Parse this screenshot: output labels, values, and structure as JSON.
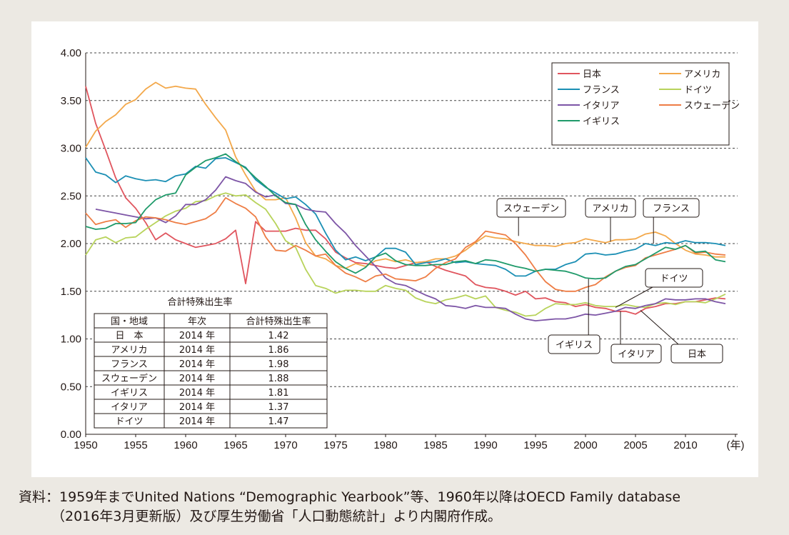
{
  "chart_data": {
    "type": "line",
    "title": "",
    "xlabel": "(年)",
    "ylabel": "",
    "xlim": [
      1950,
      2016
    ],
    "ylim": [
      0,
      4.0
    ],
    "x_ticks": [
      "1950",
      "1955",
      "1960",
      "1965",
      "1970",
      "1975",
      "1980",
      "1985",
      "1990",
      "1995",
      "2000",
      "2005",
      "2010",
      "(年)"
    ],
    "y_ticks": [
      "0.00",
      "0.50",
      "1.00",
      "1.50",
      "2.00",
      "2.50",
      "3.00",
      "3.50",
      "4.00"
    ],
    "legend": [
      "日本",
      "アメリカ",
      "フランス",
      "ドイツ",
      "イタリア",
      "スウェーデン",
      "イギリス"
    ],
    "series": [
      {
        "name": "日本",
        "color": "#e0555e",
        "x": [
          1950,
          1951,
          1952,
          1953,
          1954,
          1955,
          1956,
          1957,
          1958,
          1959,
          1960,
          1961,
          1962,
          1963,
          1964,
          1965,
          1966,
          1967,
          1968,
          1969,
          1970,
          1971,
          1972,
          1973,
          1974,
          1975,
          1976,
          1977,
          1978,
          1979,
          1980,
          1981,
          1982,
          1983,
          1984,
          1985,
          1986,
          1987,
          1988,
          1989,
          1990,
          1991,
          1992,
          1993,
          1994,
          1995,
          1996,
          1997,
          1998,
          1999,
          2000,
          2001,
          2002,
          2003,
          2004,
          2005,
          2006,
          2007,
          2008,
          2009,
          2010,
          2011,
          2012,
          2013,
          2014
        ],
        "values": [
          3.65,
          3.26,
          2.98,
          2.69,
          2.48,
          2.37,
          2.22,
          2.04,
          2.11,
          2.04,
          2.0,
          1.96,
          1.98,
          2.0,
          2.05,
          2.14,
          1.58,
          2.23,
          2.13,
          2.13,
          2.13,
          2.16,
          2.14,
          2.14,
          2.05,
          1.91,
          1.85,
          1.8,
          1.79,
          1.77,
          1.75,
          1.74,
          1.77,
          1.8,
          1.81,
          1.76,
          1.72,
          1.69,
          1.66,
          1.57,
          1.54,
          1.53,
          1.5,
          1.46,
          1.5,
          1.42,
          1.43,
          1.39,
          1.38,
          1.34,
          1.36,
          1.33,
          1.32,
          1.29,
          1.29,
          1.26,
          1.32,
          1.34,
          1.37,
          1.37,
          1.39,
          1.39,
          1.41,
          1.43,
          1.42
        ]
      },
      {
        "name": "アメリカ",
        "color": "#f3a84a",
        "x": [
          1950,
          1951,
          1952,
          1953,
          1954,
          1955,
          1956,
          1957,
          1958,
          1959,
          1960,
          1961,
          1962,
          1963,
          1964,
          1965,
          1966,
          1967,
          1968,
          1969,
          1970,
          1971,
          1972,
          1973,
          1974,
          1975,
          1976,
          1977,
          1978,
          1979,
          1980,
          1981,
          1982,
          1983,
          1984,
          1985,
          1986,
          1987,
          1988,
          1989,
          1990,
          1991,
          1992,
          1993,
          1994,
          1995,
          1996,
          1997,
          1998,
          1999,
          2000,
          2001,
          2002,
          2003,
          2004,
          2005,
          2006,
          2007,
          2008,
          2009,
          2010,
          2011,
          2012,
          2013,
          2014
        ],
        "values": [
          3.01,
          3.18,
          3.28,
          3.35,
          3.46,
          3.51,
          3.62,
          3.69,
          3.63,
          3.65,
          3.63,
          3.62,
          3.46,
          3.32,
          3.19,
          2.91,
          2.72,
          2.55,
          2.46,
          2.46,
          2.48,
          2.27,
          2.01,
          1.87,
          1.84,
          1.77,
          1.74,
          1.79,
          1.76,
          1.82,
          1.84,
          1.81,
          1.83,
          1.8,
          1.81,
          1.84,
          1.84,
          1.87,
          1.93,
          2.01,
          2.08,
          2.06,
          2.05,
          2.02,
          2.0,
          1.98,
          1.98,
          1.97,
          2.0,
          2.01,
          2.05,
          2.03,
          2.01,
          2.04,
          2.04,
          2.05,
          2.1,
          2.12,
          2.08,
          2.0,
          1.93,
          1.89,
          1.88,
          1.86,
          1.86
        ]
      },
      {
        "name": "フランス",
        "color": "#1b8fb4",
        "x": [
          1950,
          1951,
          1952,
          1953,
          1954,
          1955,
          1956,
          1957,
          1958,
          1959,
          1960,
          1961,
          1962,
          1963,
          1964,
          1965,
          1966,
          1967,
          1968,
          1969,
          1970,
          1971,
          1972,
          1973,
          1974,
          1975,
          1976,
          1977,
          1978,
          1979,
          1980,
          1981,
          1982,
          1983,
          1984,
          1985,
          1986,
          1987,
          1988,
          1989,
          1990,
          1991,
          1992,
          1993,
          1994,
          1995,
          1996,
          1997,
          1998,
          1999,
          2000,
          2001,
          2002,
          2003,
          2004,
          2005,
          2006,
          2007,
          2008,
          2009,
          2010,
          2011,
          2012,
          2013,
          2014
        ],
        "values": [
          2.9,
          2.75,
          2.72,
          2.64,
          2.71,
          2.68,
          2.66,
          2.67,
          2.65,
          2.71,
          2.73,
          2.81,
          2.79,
          2.89,
          2.9,
          2.85,
          2.8,
          2.67,
          2.59,
          2.53,
          2.47,
          2.49,
          2.41,
          2.31,
          2.11,
          1.93,
          1.83,
          1.86,
          1.82,
          1.86,
          1.95,
          1.95,
          1.91,
          1.78,
          1.8,
          1.81,
          1.84,
          1.8,
          1.81,
          1.79,
          1.78,
          1.77,
          1.73,
          1.66,
          1.66,
          1.71,
          1.73,
          1.73,
          1.78,
          1.81,
          1.89,
          1.9,
          1.88,
          1.89,
          1.92,
          1.94,
          2.0,
          1.98,
          2.01,
          2.0,
          2.03,
          2.01,
          2.01,
          2.0,
          1.98
        ]
      },
      {
        "name": "ドイツ",
        "color": "#b8d35b",
        "x": [
          1950,
          1951,
          1952,
          1953,
          1954,
          1955,
          1956,
          1957,
          1958,
          1959,
          1960,
          1961,
          1962,
          1963,
          1964,
          1965,
          1966,
          1967,
          1968,
          1969,
          1970,
          1971,
          1972,
          1973,
          1974,
          1975,
          1976,
          1977,
          1978,
          1979,
          1980,
          1981,
          1982,
          1983,
          1984,
          1985,
          1986,
          1987,
          1988,
          1989,
          1990,
          1991,
          1992,
          1993,
          1994,
          1995,
          1996,
          1997,
          1998,
          1999,
          2000,
          2001,
          2002,
          2003,
          2004,
          2005,
          2006,
          2007,
          2008,
          2009,
          2010,
          2011,
          2012,
          2013,
          2014
        ],
        "values": [
          1.88,
          2.04,
          2.07,
          2.01,
          2.06,
          2.07,
          2.15,
          2.22,
          2.29,
          2.34,
          2.37,
          2.44,
          2.45,
          2.5,
          2.53,
          2.5,
          2.51,
          2.43,
          2.36,
          2.21,
          2.03,
          1.96,
          1.73,
          1.56,
          1.53,
          1.48,
          1.51,
          1.51,
          1.5,
          1.5,
          1.56,
          1.53,
          1.51,
          1.43,
          1.39,
          1.37,
          1.41,
          1.43,
          1.46,
          1.42,
          1.45,
          1.33,
          1.3,
          1.28,
          1.24,
          1.25,
          1.32,
          1.37,
          1.36,
          1.36,
          1.38,
          1.35,
          1.34,
          1.34,
          1.36,
          1.34,
          1.33,
          1.37,
          1.38,
          1.36,
          1.39,
          1.39,
          1.38,
          1.42,
          1.47
        ]
      },
      {
        "name": "イタリア",
        "color": "#7d55a6",
        "x": [
          1951,
          1952,
          1953,
          1954,
          1955,
          1956,
          1957,
          1958,
          1959,
          1960,
          1961,
          1962,
          1963,
          1964,
          1965,
          1966,
          1967,
          1968,
          1969,
          1970,
          1971,
          1972,
          1973,
          1974,
          1975,
          1976,
          1977,
          1978,
          1979,
          1980,
          1981,
          1982,
          1983,
          1984,
          1985,
          1986,
          1987,
          1988,
          1989,
          1990,
          1991,
          1992,
          1993,
          1994,
          1995,
          1996,
          1997,
          1998,
          1999,
          2000,
          2001,
          2002,
          2003,
          2004,
          2005,
          2006,
          2007,
          2008,
          2009,
          2010,
          2011,
          2012,
          2013,
          2014
        ],
        "values": [
          2.36,
          2.34,
          2.32,
          2.3,
          2.28,
          2.26,
          2.27,
          2.22,
          2.29,
          2.41,
          2.41,
          2.46,
          2.56,
          2.7,
          2.66,
          2.63,
          2.54,
          2.49,
          2.51,
          2.42,
          2.41,
          2.36,
          2.34,
          2.33,
          2.21,
          2.11,
          1.98,
          1.87,
          1.76,
          1.64,
          1.58,
          1.56,
          1.51,
          1.46,
          1.42,
          1.35,
          1.34,
          1.32,
          1.35,
          1.33,
          1.33,
          1.32,
          1.26,
          1.21,
          1.19,
          1.2,
          1.21,
          1.21,
          1.23,
          1.26,
          1.25,
          1.27,
          1.29,
          1.33,
          1.32,
          1.35,
          1.37,
          1.42,
          1.41,
          1.41,
          1.42,
          1.42,
          1.39,
          1.37
        ]
      },
      {
        "name": "スウェーデン",
        "color": "#ee7d45",
        "x": [
          1950,
          1951,
          1952,
          1953,
          1954,
          1955,
          1956,
          1957,
          1958,
          1959,
          1960,
          1961,
          1962,
          1963,
          1964,
          1965,
          1966,
          1967,
          1968,
          1969,
          1970,
          1971,
          1972,
          1973,
          1974,
          1975,
          1976,
          1977,
          1978,
          1979,
          1980,
          1981,
          1982,
          1983,
          1984,
          1985,
          1986,
          1987,
          1988,
          1989,
          1990,
          1991,
          1992,
          1993,
          1994,
          1995,
          1996,
          1997,
          1998,
          1999,
          2000,
          2001,
          2002,
          2003,
          2004,
          2005,
          2006,
          2007,
          2008,
          2009,
          2010,
          2011,
          2012,
          2013,
          2014
        ],
        "values": [
          2.32,
          2.2,
          2.23,
          2.25,
          2.17,
          2.24,
          2.28,
          2.27,
          2.25,
          2.22,
          2.2,
          2.23,
          2.26,
          2.33,
          2.48,
          2.42,
          2.37,
          2.28,
          2.07,
          1.93,
          1.92,
          1.98,
          1.93,
          1.87,
          1.89,
          1.77,
          1.69,
          1.65,
          1.6,
          1.66,
          1.68,
          1.63,
          1.62,
          1.61,
          1.65,
          1.74,
          1.8,
          1.84,
          1.96,
          2.02,
          2.13,
          2.11,
          2.09,
          2.0,
          1.88,
          1.73,
          1.6,
          1.52,
          1.5,
          1.5,
          1.54,
          1.57,
          1.65,
          1.71,
          1.75,
          1.77,
          1.85,
          1.88,
          1.91,
          1.94,
          1.98,
          1.9,
          1.91,
          1.89,
          1.88
        ]
      },
      {
        "name": "イギリス",
        "color": "#1f9a6a",
        "x": [
          1950,
          1951,
          1952,
          1953,
          1954,
          1955,
          1956,
          1957,
          1958,
          1959,
          1960,
          1961,
          1962,
          1963,
          1964,
          1965,
          1966,
          1967,
          1968,
          1969,
          1970,
          1971,
          1972,
          1973,
          1974,
          1975,
          1976,
          1977,
          1978,
          1979,
          1980,
          1981,
          1982,
          1983,
          1984,
          1985,
          1986,
          1987,
          1988,
          1989,
          1990,
          1991,
          1992,
          1993,
          1994,
          1995,
          1996,
          1997,
          1998,
          1999,
          2000,
          2001,
          2002,
          2003,
          2004,
          2005,
          2006,
          2007,
          2008,
          2009,
          2010,
          2011,
          2012,
          2013,
          2014
        ],
        "values": [
          2.18,
          2.15,
          2.16,
          2.21,
          2.21,
          2.22,
          2.36,
          2.46,
          2.51,
          2.53,
          2.72,
          2.8,
          2.87,
          2.9,
          2.94,
          2.86,
          2.79,
          2.69,
          2.6,
          2.5,
          2.43,
          2.41,
          2.2,
          2.04,
          1.92,
          1.81,
          1.74,
          1.69,
          1.75,
          1.86,
          1.9,
          1.82,
          1.78,
          1.77,
          1.77,
          1.78,
          1.78,
          1.81,
          1.82,
          1.79,
          1.83,
          1.82,
          1.79,
          1.76,
          1.74,
          1.71,
          1.73,
          1.72,
          1.71,
          1.68,
          1.64,
          1.63,
          1.64,
          1.71,
          1.76,
          1.78,
          1.84,
          1.9,
          1.96,
          1.94,
          1.98,
          1.91,
          1.92,
          1.83,
          1.81
        ]
      }
    ],
    "callouts": [
      "スウェーデン",
      "アメリカ",
      "フランス",
      "ドイツ",
      "イギリス",
      "イタリア",
      "日本"
    ]
  },
  "table": {
    "title": "合計特殊出生率",
    "headers": [
      "国・地域",
      "年次",
      "合計特殊出生率"
    ],
    "rows": [
      [
        "日　本",
        "2014 年",
        "1.42"
      ],
      [
        "アメリカ",
        "2014 年",
        "1.86"
      ],
      [
        "フランス",
        "2014 年",
        "1.98"
      ],
      [
        "スウェーデン",
        "2014 年",
        "1.88"
      ],
      [
        "イギリス",
        "2014 年",
        "1.81"
      ],
      [
        "イタリア",
        "2014 年",
        "1.37"
      ],
      [
        "ドイツ",
        "2014 年",
        "1.47"
      ]
    ]
  },
  "source": {
    "line1": "資料：1959年までUnited Nations “Demographic Yearbook”等、1960年以降はOECD Family database",
    "line2": "（2016年3月更新版）及び厚生労働省「人口動態統計」より内閣府作成。"
  }
}
